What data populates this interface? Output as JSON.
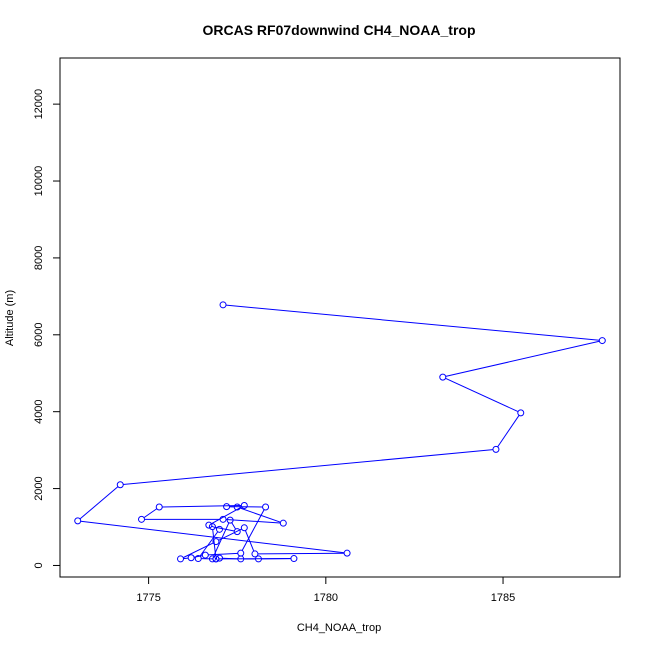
{
  "chart_data": {
    "type": "line",
    "title": "ORCAS RF07downwind CH4_NOAA_trop",
    "xlabel": "CH4_NOAA_trop",
    "ylabel": "Altitude (m)",
    "xlim": [
      1772.5,
      1788.3
    ],
    "ylim": [
      -300,
      13200
    ],
    "xticks": [
      1775,
      1780,
      1785
    ],
    "yticks": [
      0,
      2000,
      4000,
      6000,
      8000,
      10000,
      12000
    ],
    "grid": false,
    "series": [
      {
        "color": "#0000ff",
        "marker": "open-circle",
        "x": [
          1777.1,
          1787.8,
          1783.3,
          1785.5,
          1784.8,
          1774.2,
          1773.0,
          1780.6,
          1778.0,
          1777.7,
          1776.9,
          1775.9,
          1776.2,
          1776.6,
          1777.6,
          1778.3,
          1777.2,
          1777.5,
          1778.8,
          1777.1,
          1774.8,
          1775.3,
          1777.7,
          1776.7,
          1777.0,
          1776.4,
          1776.9,
          1779.1,
          1778.1,
          1777.6,
          1777.0,
          1776.8,
          1777.3,
          1777.5,
          1776.8,
          1776.9
        ],
        "y": [
          6780,
          5850,
          4900,
          3970,
          3020,
          2100,
          1160,
          320,
          300,
          980,
          620,
          170,
          200,
          270,
          320,
          1520,
          1530,
          1520,
          1100,
          1200,
          1200,
          1520,
          1560,
          1050,
          940,
          180,
          170,
          180,
          170,
          170,
          190,
          170,
          1180,
          880,
          1010,
          170
        ]
      }
    ]
  }
}
